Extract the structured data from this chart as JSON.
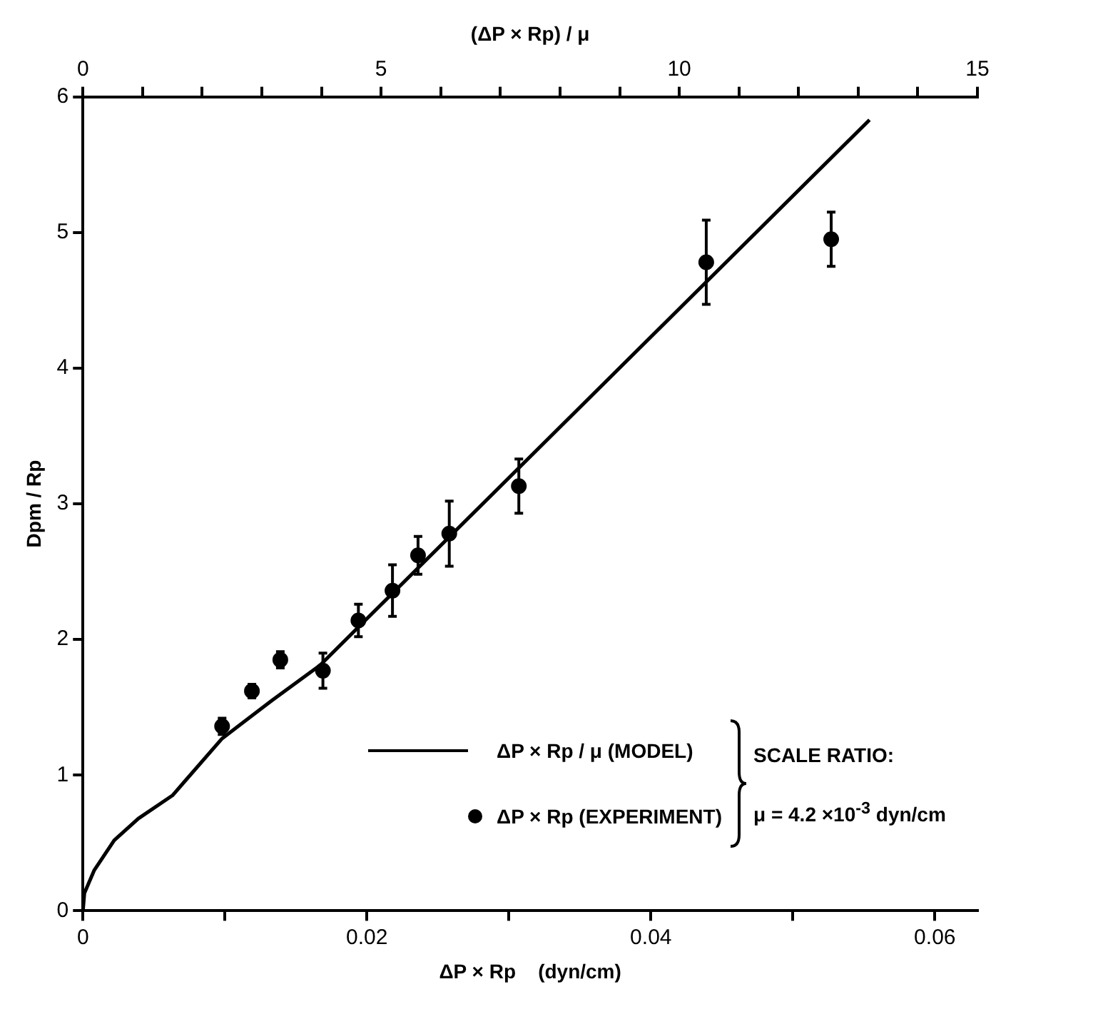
{
  "chart_data": {
    "type": "scatter",
    "xlabel": "ΔP × Rp    (dyn/cm)",
    "ylabel": "Dpm / Rp",
    "x2label": "(ΔP × Rp) / μ",
    "xlim": [
      0,
      0.063
    ],
    "xticks": [
      0,
      {
        "value": 0.01,
        "label": null
      },
      0.02,
      {
        "value": 0.03,
        "label": null
      },
      0.04,
      {
        "value": 0.05,
        "label": null
      },
      0.06
    ],
    "x2lim": [
      0,
      15
    ],
    "x2ticks": [
      0,
      {
        "value": 1,
        "label": null
      },
      {
        "value": 2,
        "label": null
      },
      {
        "value": 3,
        "label": null
      },
      {
        "value": 4,
        "label": null
      },
      5,
      {
        "value": 6,
        "label": null
      },
      {
        "value": 7,
        "label": null
      },
      {
        "value": 8,
        "label": null
      },
      {
        "value": 9,
        "label": null
      },
      10,
      {
        "value": 11,
        "label": null
      },
      {
        "value": 12,
        "label": null
      },
      {
        "value": 13,
        "label": null
      },
      {
        "value": 14,
        "label": null
      },
      15
    ],
    "ylim": [
      0,
      6
    ],
    "yticks": [
      0,
      1,
      2,
      3,
      4,
      5,
      6
    ],
    "grid": false,
    "legend": "bottom right",
    "series": [
      {
        "name": "ΔP × Rp / μ (MODEL)",
        "type": "line",
        "color": "#000000",
        "marker": "none",
        "line_style": "solid",
        "x": [
          0,
          0.0001,
          0.0008,
          0.0022,
          0.0039,
          0.0063,
          0.0098,
          0.0133,
          0.0167,
          0.0554
        ],
        "values": [
          0,
          0.13,
          0.3,
          0.52,
          0.68,
          0.85,
          1.27,
          1.55,
          1.81,
          5.83
        ]
      },
      {
        "name": "ΔP × Rp (EXPERIMENT)",
        "type": "scatter",
        "color": "#000000",
        "marker": "circle",
        "x": [
          0.0098,
          0.0119,
          0.0139,
          0.0169,
          0.0194,
          0.0218,
          0.0236,
          0.0258,
          0.0307,
          0.0439,
          0.0527
        ],
        "values": [
          1.36,
          1.62,
          1.85,
          1.77,
          2.14,
          2.36,
          2.62,
          2.78,
          3.13,
          4.78,
          4.95
        ],
        "errors": [
          0.06,
          0.05,
          0.06,
          0.13,
          0.12,
          0.19,
          0.14,
          0.24,
          0.2,
          0.31,
          0.2
        ]
      }
    ],
    "annotations": [
      "SCALE RATIO:",
      "μ = 4.2 ×10$^{-3}$ dyn/cm"
    ]
  }
}
